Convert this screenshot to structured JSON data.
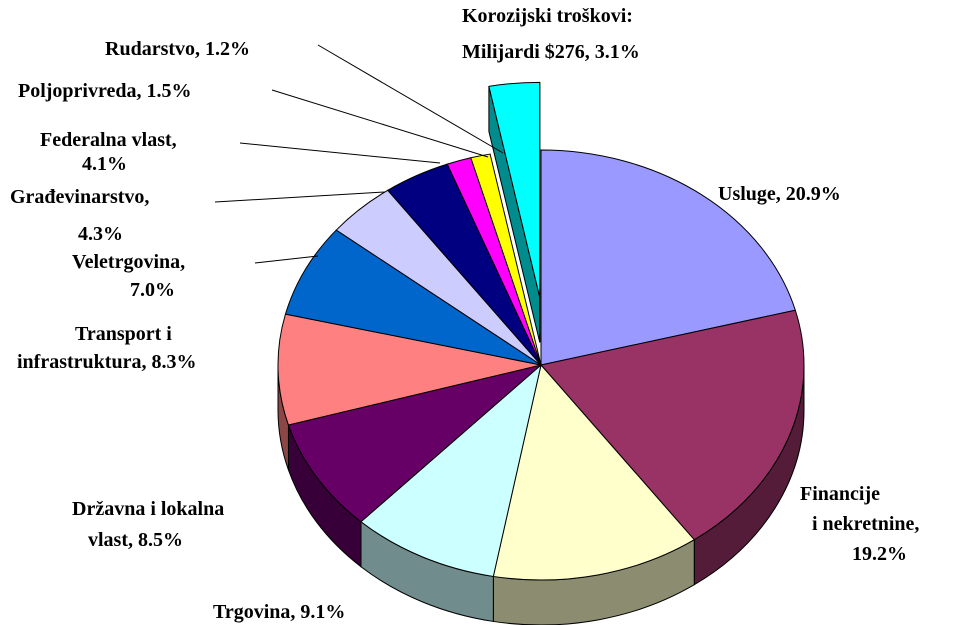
{
  "chart_data": {
    "type": "pie3d",
    "categories": [
      [
        "Usluge, 20.9%"
      ],
      [
        "Financije",
        "i nekretnine,",
        "19.2%"
      ],
      null,
      [
        "Trgovina, 9.1%"
      ],
      [
        "Državna i lokalna",
        "vlast, 8.5%"
      ],
      [
        "Transport i",
        "infrastruktura, 8.3%"
      ],
      [
        "Veletrgovina,",
        "7.0%"
      ],
      [
        "Građevinarstvo,",
        "4.3%"
      ],
      [
        "Federalna vlast,",
        "4.1%"
      ],
      [
        "Poljoprivreda, 1.5%"
      ],
      [
        "Rudarstvo, 1.2%"
      ],
      [
        "Korozijski troškovi:",
        "Milijardi $276, 3.1%"
      ]
    ],
    "values": [
      20.9,
      19.2,
      12.8,
      9.1,
      8.5,
      8.3,
      7.0,
      4.3,
      4.1,
      1.5,
      1.2,
      3.1
    ],
    "colors": [
      "#9999ff",
      "#993366",
      "#ffffcc",
      "#ccffff",
      "#660066",
      "#ff8080",
      "#0066cc",
      "#ccccff",
      "#000080",
      "#ff00ff",
      "#ffff00",
      "#00ffff"
    ]
  }
}
